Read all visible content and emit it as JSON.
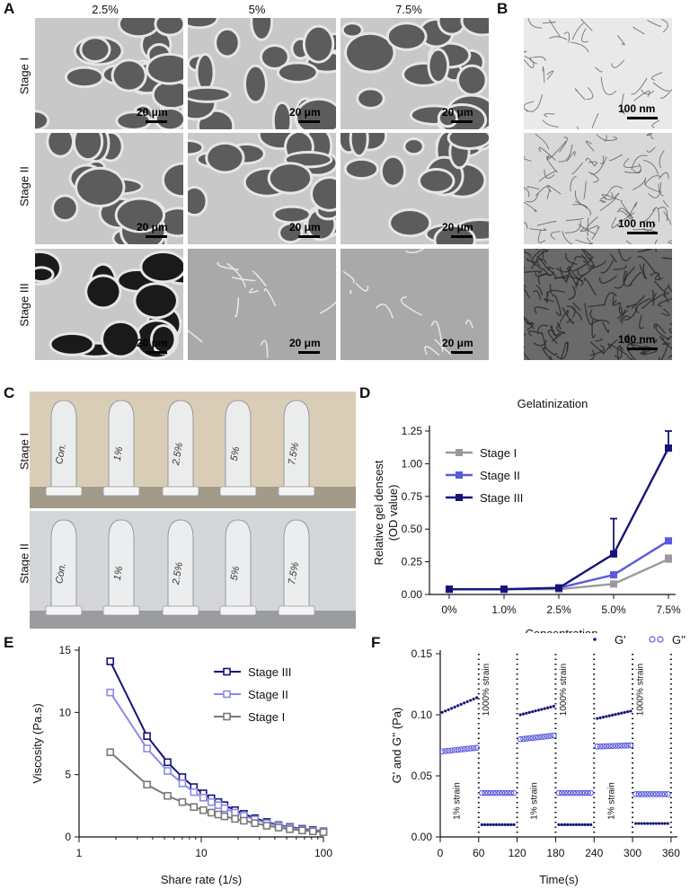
{
  "panels": {
    "A": {
      "label": "A",
      "columns": [
        "2.5%",
        "5%",
        "7.5%"
      ],
      "rows": [
        "Stage I",
        "Stage II",
        "Stage III"
      ],
      "scale_bar": "20 μm"
    },
    "B": {
      "label": "B",
      "scale_bar": "100 nm"
    },
    "C": {
      "label": "C",
      "rows": [
        "Stage I",
        "Stage II"
      ],
      "tube_labels_stage1": [
        "Con.",
        "1%",
        "2.5%",
        "5%",
        "7.5%"
      ],
      "tube_labels_stage2": [
        "Con.",
        "1%",
        "2.5%",
        "5%",
        "7.5%"
      ]
    },
    "D": {
      "label": "D"
    },
    "E": {
      "label": "E"
    },
    "F": {
      "label": "F"
    }
  },
  "chart_data": [
    {
      "id": "D",
      "type": "line",
      "title": "Gelatinization",
      "xlabel": "Concentration",
      "ylabel": "Relative gel densest (OD value)",
      "ylabel_lines": [
        "Relative gel densest",
        "(OD value)"
      ],
      "categories": [
        "0%",
        "1.0%",
        "2.5%",
        "5.0%",
        "7.5%"
      ],
      "ylim": [
        0,
        1.25
      ],
      "yticks": [
        "0.00",
        "0.25",
        "0.50",
        "0.75",
        "1.00",
        "1.25"
      ],
      "legend_position": "upper-left",
      "series": [
        {
          "name": "Stage I",
          "color": "#9a9a9a",
          "values": [
            0.04,
            0.04,
            0.04,
            0.08,
            0.27
          ],
          "errors": [
            0,
            0,
            0,
            0,
            0.03
          ]
        },
        {
          "name": "Stage II",
          "color": "#5a5adc",
          "values": [
            0.04,
            0.04,
            0.05,
            0.15,
            0.41
          ],
          "errors": [
            0,
            0,
            0,
            0,
            0.02
          ]
        },
        {
          "name": "Stage III",
          "color": "#14147a",
          "values": [
            0.04,
            0.04,
            0.05,
            0.31,
            1.12
          ],
          "errors": [
            0,
            0,
            0,
            0.27,
            0.13
          ]
        }
      ]
    },
    {
      "id": "E",
      "type": "line",
      "xlabel": "Share rate (1/s)",
      "ylabel": "Viscosity (Pa.s)",
      "xscale": "log",
      "xlim": [
        1,
        100
      ],
      "xticks": [
        "1",
        "10",
        "100"
      ],
      "ylim": [
        0,
        15
      ],
      "yticks": [
        "0",
        "5",
        "10",
        "15"
      ],
      "legend_position": "upper-right",
      "x": [
        1.8,
        3.6,
        5.3,
        7.0,
        8.7,
        10.4,
        12.1,
        13.8,
        15.5,
        18.9,
        22.3,
        27.5,
        34.4,
        43.0,
        53.0,
        67.0,
        82.0,
        100.0
      ],
      "series": [
        {
          "name": "Stage III",
          "color": "#14147a",
          "values": [
            14.1,
            8.1,
            6.0,
            4.8,
            4.0,
            3.5,
            3.1,
            2.8,
            2.55,
            2.15,
            1.85,
            1.5,
            1.2,
            0.95,
            0.8,
            0.65,
            0.55,
            0.45
          ]
        },
        {
          "name": "Stage II",
          "color": "#8a8ae8",
          "values": [
            11.6,
            7.1,
            5.3,
            4.3,
            3.6,
            3.15,
            2.8,
            2.55,
            2.3,
            1.95,
            1.7,
            1.4,
            1.1,
            0.9,
            0.75,
            0.6,
            0.5,
            0.42
          ]
        },
        {
          "name": "Stage I",
          "color": "#7a7a7a",
          "values": [
            6.8,
            4.2,
            3.3,
            2.8,
            2.4,
            2.15,
            1.95,
            1.8,
            1.65,
            1.45,
            1.3,
            1.1,
            0.9,
            0.75,
            0.62,
            0.52,
            0.45,
            0.38
          ]
        }
      ]
    },
    {
      "id": "F",
      "type": "scatter",
      "xlabel": "Time(s)",
      "ylabel": "G' and G'' (Pa)",
      "xlim": [
        0,
        370
      ],
      "xticks": [
        "0",
        "60",
        "120",
        "180",
        "240",
        "300",
        "360"
      ],
      "ylim": [
        0,
        0.15
      ],
      "yticks": [
        "0.00",
        "0.05",
        "0.10",
        "0.15"
      ],
      "legend_position": "top-right",
      "legend": [
        "G'",
        "G''"
      ],
      "annotations": [
        "1% strain",
        "1000% strain",
        "1% strain",
        "1000% strain",
        "1% strain",
        "1000% strain"
      ],
      "segments": [
        {
          "t": [
            0,
            60
          ],
          "strain": "1%",
          "Gp": [
            0.102,
            0.114
          ],
          "Gpp": [
            0.07,
            0.073
          ]
        },
        {
          "t": [
            62,
            118
          ],
          "strain": "1000%",
          "Gp": [
            0.01,
            0.01
          ],
          "Gpp": [
            0.036,
            0.036
          ]
        },
        {
          "t": [
            122,
            180
          ],
          "strain": "1%",
          "Gp": [
            0.1,
            0.107
          ],
          "Gpp": [
            0.08,
            0.083
          ]
        },
        {
          "t": [
            182,
            238
          ],
          "strain": "1000%",
          "Gp": [
            0.01,
            0.01
          ],
          "Gpp": [
            0.036,
            0.036
          ]
        },
        {
          "t": [
            242,
            300
          ],
          "strain": "1%",
          "Gp": [
            0.097,
            0.103
          ],
          "Gpp": [
            0.074,
            0.075
          ]
        },
        {
          "t": [
            302,
            358
          ],
          "strain": "1000%",
          "Gp": [
            0.011,
            0.011
          ],
          "Gpp": [
            0.035,
            0.035
          ]
        }
      ],
      "colors": {
        "Gp": "#14147a",
        "Gpp": "#5a5adc"
      }
    }
  ]
}
